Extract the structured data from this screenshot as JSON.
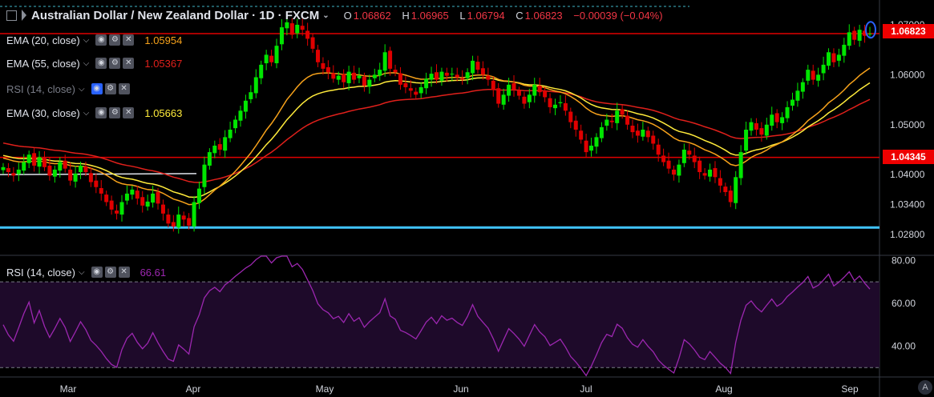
{
  "header": {
    "title": "Australian Dollar / New Zealand Dollar · 1D · FXCM",
    "open_label": "O",
    "open": "1.06862",
    "high_label": "H",
    "high": "1.06965",
    "low_label": "L",
    "low": "1.06794",
    "close_label": "C",
    "close": "1.06823",
    "change": "−0.00039 (−0.04%)"
  },
  "indicators": [
    {
      "label": "EMA (20, close)",
      "value": "1.05954",
      "value_color": "#f7a21b",
      "active": false
    },
    {
      "label": "EMA (55, close)",
      "value": "1.05367",
      "value_color": "#e0201b",
      "active": false
    },
    {
      "label": "RSI (14, close)",
      "value": "",
      "value_color": "#787b86",
      "active": true,
      "dimmed": true
    },
    {
      "label": "EMA (30, close)",
      "value": "1.05663",
      "value_color": "#ffeb3b",
      "active": false
    }
  ],
  "rsi_legend": {
    "label": "RSI (14, close)",
    "value": "66.61",
    "value_color": "#9c27b0"
  },
  "price_tags": {
    "last": "1.06823",
    "level": "1.04345"
  },
  "icons": [
    "collapse-icon",
    "flag-icon",
    "chevron-down-icon",
    "eye-icon",
    "gear-icon",
    "close-icon"
  ],
  "colors": {
    "up": "#00e600",
    "down": "#e00000",
    "ema20": "#f7a21b",
    "ema30": "#ffeb3b",
    "ema55": "#e0201b",
    "rsi": "#9c27b0",
    "support": "#40c4ff",
    "resistance": "#e00000"
  },
  "bottom_button": "A",
  "chart_data": [
    {
      "type": "candlestick",
      "title": "Australian Dollar / New Zealand Dollar · 1D · FXCM",
      "x_labels": [
        "Mar",
        "Apr",
        "May",
        "Jun",
        "Jul",
        "Aug",
        "Sep"
      ],
      "y_ticks": [
        "1.07000",
        "1.06000",
        "1.05000",
        "1.04000",
        "1.03400",
        "1.02800"
      ],
      "ylim": [
        1.024,
        1.074
      ],
      "grid": false,
      "close_path": [
        1.0415,
        1.0405,
        1.0398,
        1.041,
        1.0425,
        1.044,
        1.0418,
        1.0435,
        1.0415,
        1.0398,
        1.041,
        1.0425,
        1.0412,
        1.0388,
        1.0402,
        1.0418,
        1.0405,
        1.0385,
        1.0375,
        1.0362,
        1.0345,
        1.033,
        1.0322,
        1.0345,
        1.0362,
        1.037,
        1.0352,
        1.0338,
        1.0346,
        1.0362,
        1.0342,
        1.0322,
        1.0302,
        1.0296,
        1.032,
        1.031,
        1.0298,
        1.0345,
        1.0372,
        1.042,
        1.0445,
        1.0458,
        1.045,
        1.0475,
        1.049,
        1.051,
        1.0528,
        1.0548,
        1.0565,
        1.0595,
        1.062,
        1.064,
        1.0625,
        1.0658,
        1.0695,
        1.0705,
        1.068,
        1.07,
        1.069,
        1.0672,
        1.0652,
        1.0625,
        1.0612,
        1.0605,
        1.0592,
        1.0598,
        1.0585,
        1.0606,
        1.059,
        1.0598,
        1.0578,
        1.059,
        1.06,
        1.061,
        1.0645,
        1.0612,
        1.0605,
        1.058,
        1.0575,
        1.0568,
        1.056,
        1.0575,
        1.0592,
        1.0602,
        1.059,
        1.0606,
        1.0598,
        1.0602,
        1.0595,
        1.059,
        1.0605,
        1.0628,
        1.061,
        1.06,
        1.059,
        1.057,
        1.0542,
        1.056,
        1.058,
        1.057,
        1.0558,
        1.0542,
        1.056,
        1.058,
        1.0565,
        1.0555,
        1.0535,
        1.054,
        1.0545,
        1.0528,
        1.0505,
        1.049,
        1.047,
        1.0445,
        1.0458,
        1.0475,
        1.0495,
        1.051,
        1.0505,
        1.0528,
        1.052,
        1.05,
        1.0485,
        1.0478,
        1.049,
        1.0475,
        1.0462,
        1.044,
        1.0425,
        1.0412,
        1.04,
        1.042,
        1.045,
        1.044,
        1.0425,
        1.0405,
        1.0398,
        1.041,
        1.0395,
        1.0378,
        1.0365,
        1.0345,
        1.0395,
        1.0445,
        1.049,
        1.0505,
        1.049,
        1.048,
        1.05,
        1.052,
        1.0505,
        1.0515,
        1.0535,
        1.055,
        1.0568,
        1.0585,
        1.061,
        1.059,
        1.06,
        1.062,
        1.0645,
        1.0625,
        1.064,
        1.066,
        1.0685,
        1.067,
        1.069,
        1.0678,
        1.0682
      ],
      "ema20_last": 1.05954,
      "ema30_last": 1.05663,
      "ema55_last": 1.05367,
      "horizontal_levels": [
        {
          "value": 1.06823,
          "color": "#e00000"
        },
        {
          "value": 1.04345,
          "color": "#e00000"
        },
        {
          "value": 1.0294,
          "color": "#40c4ff"
        }
      ]
    },
    {
      "type": "line",
      "title": "RSI (14, close)",
      "y_ticks": [
        "80.00",
        "60.00",
        "40.00"
      ],
      "ylim": [
        26,
        82
      ],
      "bands": [
        70,
        30
      ],
      "last": 66.61
    }
  ]
}
